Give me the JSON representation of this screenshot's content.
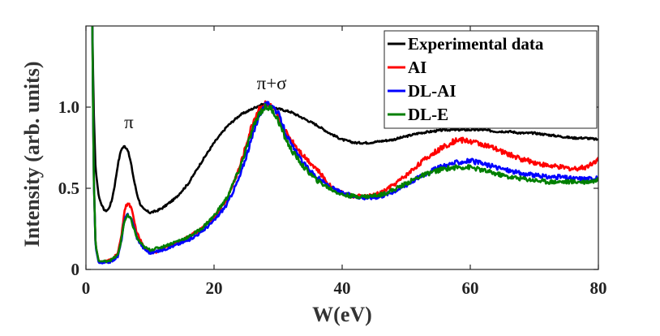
{
  "chart_data": {
    "type": "line",
    "title": "",
    "xlabel": "W(eV)",
    "ylabel": "Intensity (arb. units)",
    "xlim": [
      0,
      80
    ],
    "ylim": [
      0,
      1.5
    ],
    "xticks": [
      0,
      20,
      40,
      60,
      80
    ],
    "xtick_labels": [
      "0",
      "20",
      "40",
      "60",
      "80"
    ],
    "yticks": [
      0,
      0.5,
      1.0
    ],
    "ytick_labels": [
      "0",
      "0.5",
      "1.0"
    ],
    "grid": false,
    "legend_position": "top-right",
    "annotations": [
      {
        "text": "π",
        "x": 6.7,
        "y": 0.87
      },
      {
        "text": "π+σ",
        "x": 29,
        "y": 1.11
      }
    ],
    "series": [
      {
        "name": "Experimental data",
        "color": "#000000",
        "x": [
          1.0,
          1.2,
          1.5,
          2.0,
          2.5,
          3.0,
          3.5,
          4.0,
          4.5,
          5.0,
          5.5,
          6.0,
          6.5,
          7.0,
          7.5,
          8.0,
          8.5,
          9.0,
          10,
          11,
          12,
          14,
          16,
          18,
          20,
          22,
          24,
          26,
          27,
          28,
          29,
          30,
          32,
          34,
          36,
          38,
          40,
          42,
          44,
          46,
          48,
          50,
          52,
          54,
          56,
          58,
          60,
          62,
          64,
          66,
          68,
          70,
          72,
          74,
          76,
          78,
          80
        ],
        "y": [
          1.5,
          1.0,
          0.62,
          0.45,
          0.39,
          0.36,
          0.37,
          0.42,
          0.52,
          0.65,
          0.74,
          0.76,
          0.74,
          0.66,
          0.55,
          0.46,
          0.4,
          0.37,
          0.35,
          0.36,
          0.38,
          0.44,
          0.53,
          0.66,
          0.78,
          0.88,
          0.95,
          0.99,
          1.01,
          1.02,
          1.0,
          0.99,
          0.97,
          0.93,
          0.89,
          0.84,
          0.8,
          0.78,
          0.78,
          0.79,
          0.8,
          0.82,
          0.84,
          0.85,
          0.86,
          0.86,
          0.86,
          0.86,
          0.85,
          0.85,
          0.84,
          0.84,
          0.83,
          0.82,
          0.81,
          0.81,
          0.8
        ]
      },
      {
        "name": "AI",
        "color": "#ff0000",
        "x": [
          1.0,
          1.2,
          1.5,
          2.0,
          3.0,
          4.0,
          5.0,
          5.5,
          6.0,
          6.5,
          7.0,
          7.5,
          8.0,
          9.0,
          10,
          11,
          12,
          14,
          16,
          18,
          20,
          22,
          24,
          26,
          27,
          28,
          29,
          30,
          31,
          32,
          34,
          36,
          38,
          40,
          42,
          44,
          46,
          48,
          50,
          52,
          54,
          56,
          58,
          60,
          62,
          64,
          66,
          68,
          70,
          72,
          74,
          76,
          78,
          80
        ],
        "y": [
          1.5,
          0.6,
          0.15,
          0.05,
          0.05,
          0.06,
          0.1,
          0.2,
          0.36,
          0.41,
          0.39,
          0.3,
          0.22,
          0.14,
          0.1,
          0.11,
          0.13,
          0.16,
          0.2,
          0.25,
          0.32,
          0.43,
          0.63,
          0.9,
          0.99,
          1.02,
          1.0,
          0.94,
          0.86,
          0.8,
          0.7,
          0.62,
          0.52,
          0.47,
          0.45,
          0.45,
          0.47,
          0.52,
          0.58,
          0.65,
          0.71,
          0.76,
          0.8,
          0.79,
          0.77,
          0.74,
          0.71,
          0.68,
          0.66,
          0.64,
          0.63,
          0.62,
          0.63,
          0.68
        ]
      },
      {
        "name": "DL-AI",
        "color": "#0000ff",
        "x": [
          1.0,
          1.2,
          1.5,
          2.0,
          3.0,
          4.0,
          5.0,
          5.5,
          6.0,
          6.5,
          7.0,
          7.5,
          8.0,
          9.0,
          10,
          11,
          12,
          14,
          16,
          18,
          20,
          22,
          24,
          26,
          27,
          28,
          29,
          30,
          31,
          32,
          34,
          36,
          38,
          40,
          42,
          44,
          46,
          48,
          50,
          52,
          54,
          56,
          58,
          60,
          62,
          64,
          66,
          68,
          70,
          72,
          74,
          76,
          78,
          80
        ],
        "y": [
          1.5,
          0.6,
          0.14,
          0.04,
          0.04,
          0.05,
          0.08,
          0.17,
          0.3,
          0.34,
          0.32,
          0.26,
          0.19,
          0.13,
          0.1,
          0.11,
          0.12,
          0.15,
          0.18,
          0.23,
          0.3,
          0.4,
          0.57,
          0.82,
          0.95,
          1.01,
          1.02,
          0.96,
          0.86,
          0.77,
          0.65,
          0.57,
          0.51,
          0.47,
          0.45,
          0.44,
          0.45,
          0.48,
          0.52,
          0.57,
          0.61,
          0.64,
          0.66,
          0.67,
          0.65,
          0.63,
          0.61,
          0.59,
          0.58,
          0.57,
          0.57,
          0.56,
          0.56,
          0.56
        ]
      },
      {
        "name": "DL-E",
        "color": "#007f00",
        "x": [
          1.0,
          1.2,
          1.5,
          2.0,
          3.0,
          4.0,
          5.0,
          5.5,
          6.0,
          6.5,
          7.0,
          7.5,
          8.0,
          9.0,
          10,
          11,
          12,
          14,
          16,
          18,
          20,
          22,
          24,
          26,
          27,
          28,
          29,
          30,
          31,
          32,
          34,
          36,
          38,
          40,
          42,
          44,
          46,
          48,
          50,
          52,
          54,
          56,
          58,
          60,
          62,
          64,
          66,
          68,
          70,
          72,
          74,
          76,
          78,
          80
        ],
        "y": [
          1.5,
          0.6,
          0.15,
          0.05,
          0.05,
          0.06,
          0.09,
          0.18,
          0.3,
          0.33,
          0.31,
          0.25,
          0.19,
          0.14,
          0.12,
          0.13,
          0.14,
          0.17,
          0.2,
          0.25,
          0.33,
          0.44,
          0.62,
          0.86,
          0.96,
          1.0,
          0.99,
          0.92,
          0.82,
          0.74,
          0.63,
          0.55,
          0.5,
          0.46,
          0.45,
          0.45,
          0.46,
          0.49,
          0.53,
          0.57,
          0.6,
          0.62,
          0.63,
          0.63,
          0.61,
          0.59,
          0.57,
          0.56,
          0.55,
          0.54,
          0.54,
          0.54,
          0.54,
          0.55
        ]
      }
    ]
  }
}
